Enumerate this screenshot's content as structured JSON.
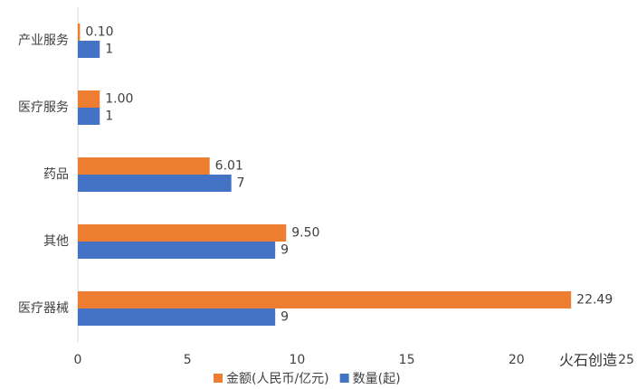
{
  "chart_data": {
    "type": "bar",
    "orientation": "horizontal",
    "categories": [
      "产业服务",
      "医疗服务",
      "药品",
      "其他",
      "医疗器械"
    ],
    "series": [
      {
        "name": "金额(人民币/亿元)",
        "color": "#ed7d31",
        "values": [
          0.1,
          1,
          6.01,
          9.5,
          22.49
        ],
        "value_labels": [
          "0.10",
          "1.00",
          "6.01",
          "9.50",
          "22.49"
        ]
      },
      {
        "name": "数量(起)",
        "color": "#4472c4",
        "values": [
          1,
          1,
          7,
          9,
          9
        ]
      }
    ],
    "xlim": [
      0,
      25
    ],
    "xticks": [
      0,
      5,
      10,
      15,
      20,
      25
    ],
    "grid": false,
    "legend": "bottom",
    "watermark": "火石创造"
  }
}
